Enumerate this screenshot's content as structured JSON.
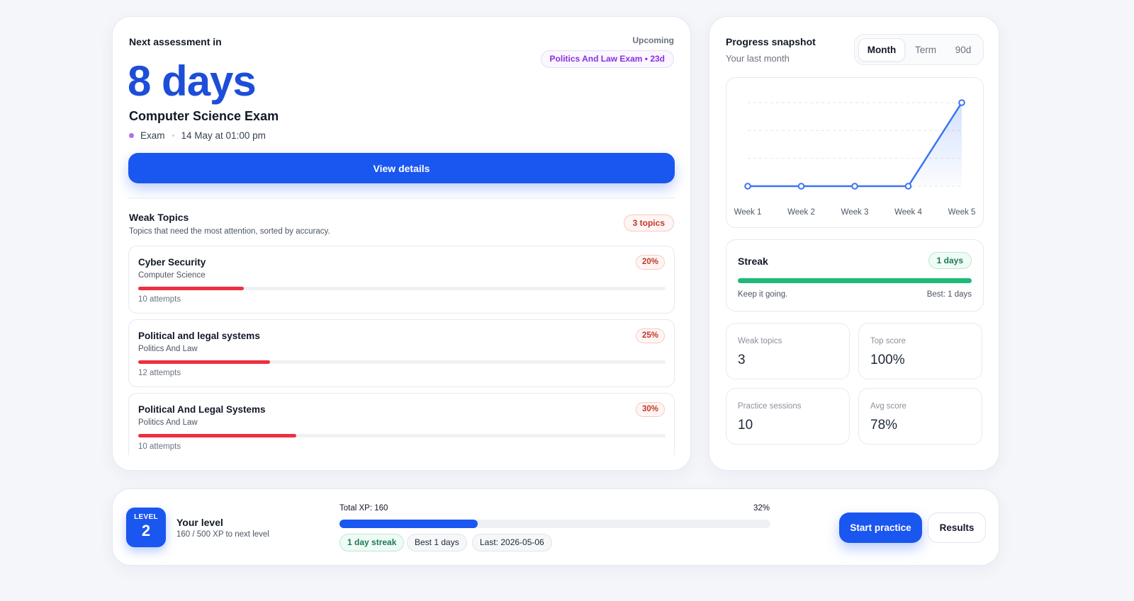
{
  "assessment": {
    "next_label": "Next assessment in",
    "countdown": "8 days",
    "exam_title": "Computer Science Exam",
    "exam_type": "Exam",
    "exam_when": "14 May at 01:00 pm",
    "exam_type_color": "#b46ee8",
    "upcoming_label": "Upcoming",
    "upcoming_pill": "Politics And Law Exam • 23d",
    "view_details": "View details"
  },
  "weak_topics": {
    "title": "Weak Topics",
    "subtitle": "Topics that need the most attention, sorted by accuracy.",
    "count_pill": "3 topics",
    "items": [
      {
        "name": "Cyber Security",
        "subject": "Computer Science",
        "percent": "20%",
        "accuracy": 20,
        "attempts": "10 attempts"
      },
      {
        "name": "Political and legal systems",
        "subject": "Politics And Law",
        "percent": "25%",
        "accuracy": 25,
        "attempts": "12 attempts"
      },
      {
        "name": "Political And Legal Systems",
        "subject": "Politics And Law",
        "percent": "30%",
        "accuracy": 30,
        "attempts": "10 attempts"
      }
    ]
  },
  "progress": {
    "title": "Progress snapshot",
    "subtitle": "Your last month",
    "ranges": [
      "Month",
      "Term",
      "90d"
    ],
    "active_range": "Month"
  },
  "chart_data": {
    "type": "area",
    "categories": [
      "Week 1",
      "Week 2",
      "Week 3",
      "Week 4",
      "Week 5"
    ],
    "series": [
      {
        "values": [
          0,
          0,
          0,
          0,
          100
        ]
      }
    ],
    "ylim": [
      0,
      100
    ],
    "grid": true,
    "color": "#3b74f0"
  },
  "streak": {
    "title": "Streak",
    "pill": "1 days",
    "progress": 1.0,
    "keep": "Keep it going.",
    "best": "Best: 1 days"
  },
  "stats": [
    {
      "label": "Weak topics",
      "value": "3"
    },
    {
      "label": "Top score",
      "value": "100%"
    },
    {
      "label": "Practice sessions",
      "value": "10"
    },
    {
      "label": "Avg score",
      "value": "78%"
    }
  ],
  "level": {
    "badge_word": "LEVEL",
    "number": "2",
    "title": "Your level",
    "subtitle": "160 / 500 XP to next level",
    "total_xp": "Total XP: 160",
    "xp_percent": "32%",
    "xp_progress": 0.32,
    "chips": [
      "1 day streak",
      "Best 1 days",
      "Last: 2026-05-06"
    ]
  },
  "actions": {
    "start_practice": "Start practice",
    "results": "Results"
  },
  "colors": {
    "accent": "#1a56f0",
    "danger": "#ef2e40",
    "success": "#1fb978"
  }
}
